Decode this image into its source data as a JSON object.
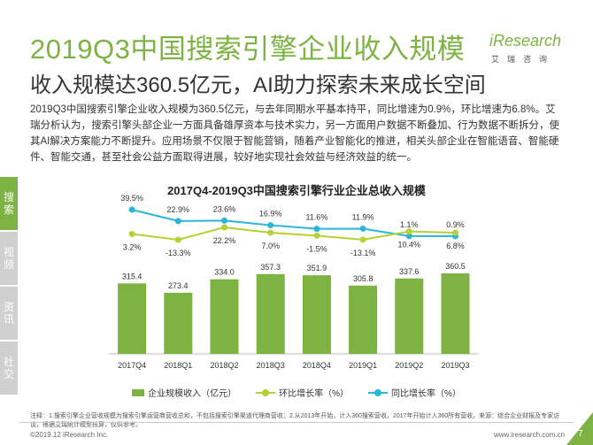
{
  "header": {
    "title": "2019Q3中国搜索引擎企业收入规模",
    "subtitle": "收入规模达360.5亿元，AI助力探索未来成长空间"
  },
  "logo": {
    "main": "iResearch",
    "sub": "艾瑞咨询"
  },
  "body_text": "2019Q3中国搜索引擎企业收入规模为360.5亿元，与去年同期水平基本持平，同比增速为0.9%，环比增速为6.8%。艾瑞分析认为，搜索引擎头部企业一方面具备雄厚资本与技术实力，另一方面用户数据不断叠加、行为数据不断拆分，使其AI解决方案能力不断提升。应用场景不仅限于智能营销，随着产业智能化的推进，相关头部企业在智能语音、智能硬件、智能交通，甚至社会公益方面取得进展，较好地实现社会效益与经济效益的统一。",
  "side_nav": [
    "搜索",
    "视频",
    "资讯",
    "社交"
  ],
  "chart_data": {
    "type": "bar",
    "title": "2017Q4-2019Q3中国搜索引擎行业企业总收入规模",
    "categories": [
      "2017Q4",
      "2018Q1",
      "2018Q2",
      "2018Q3",
      "2018Q4",
      "2019Q1",
      "2019Q2",
      "2019Q3"
    ],
    "series": [
      {
        "name": "企业规模收入（亿元）",
        "type": "bar",
        "values": [
          315.4,
          273.4,
          334.0,
          357.3,
          351.9,
          305.8,
          337.6,
          360.5
        ],
        "color": "#7cb342"
      },
      {
        "name": "环比增长率（%）",
        "type": "line",
        "values": [
          3.2,
          -13.3,
          22.2,
          7.0,
          -1.5,
          -13.1,
          10.4,
          6.8
        ],
        "labels": [
          "3.2%",
          "-13.3%",
          "22.2%",
          "7.0%",
          "-1.5%",
          "-13.1%",
          "10.4%",
          "6.8%"
        ],
        "color": "#b2d235"
      },
      {
        "name": "同比增长率（%）",
        "type": "line",
        "values": [
          39.5,
          22.9,
          23.6,
          16.9,
          11.6,
          11.9,
          1.1,
          0.9
        ],
        "labels": [
          "39.5%",
          "22.9%",
          "23.6%",
          "16.9%",
          "11.6%",
          "11.9%",
          "1.1%",
          "0.9%"
        ],
        "color": "#29b6d8"
      }
    ],
    "bar_labels": [
      "315.4",
      "273.4",
      "334.0",
      "357.3",
      "351.9",
      "305.8",
      "337.6",
      "360.5"
    ],
    "legend": [
      "企业规模收入（亿元）",
      "环比增长率（%）",
      "同比增长率（%）"
    ],
    "legend_position": "bottom"
  },
  "footnote": "注释：1.搜索引擎企业营收规模为搜索引擎运营商营收总和，不包括搜索引擎渠道代理商营收；2.从2013年开始，计入360搜索营收，2017年开始计入360所有营收。来源：综合企业财报及专家访谈，根据艾瑞统计模型核算，仅供参考。",
  "footer": {
    "copyright": "©2019.12 iResearch Inc.",
    "site": "www.iresearch.com.cn",
    "page": "7"
  },
  "colors": {
    "accent": "#7cb342",
    "line_yoy": "#29b6d8",
    "line_qoq": "#b2d235"
  }
}
